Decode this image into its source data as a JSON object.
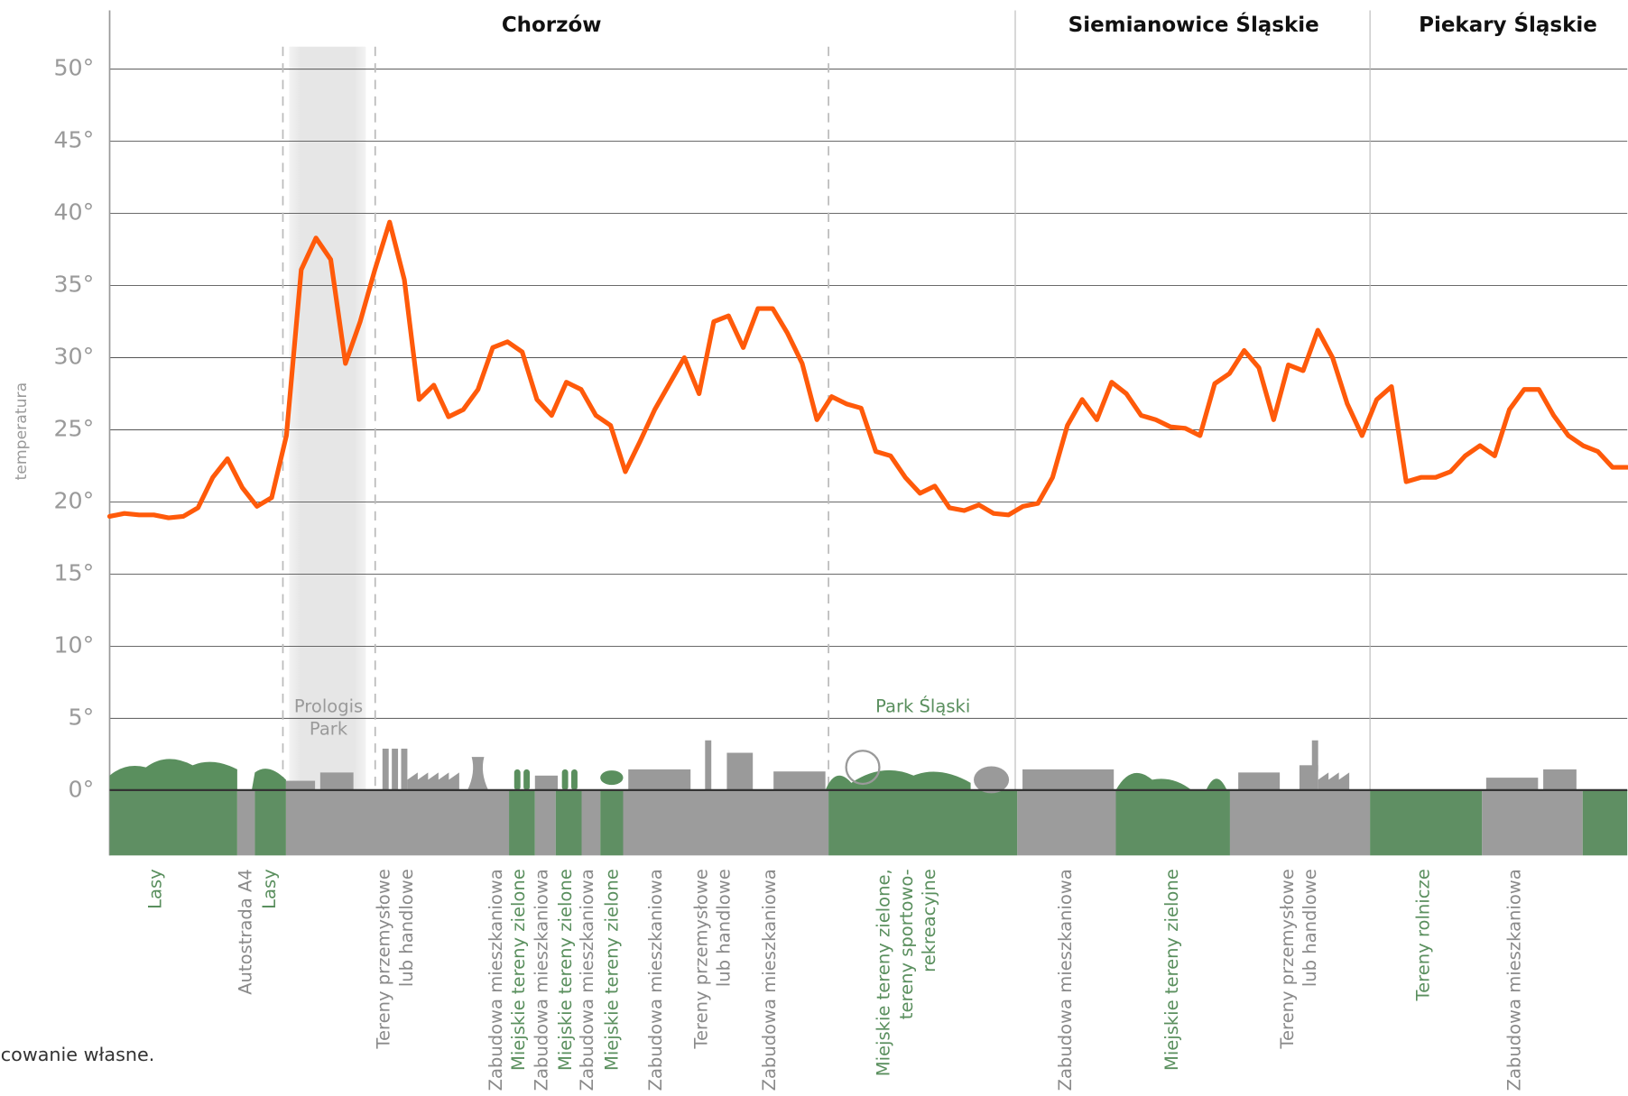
{
  "chart_data": {
    "type": "line",
    "y_label": "temperatura",
    "ylim": [
      -4.5,
      54
    ],
    "yticks": [
      {
        "value": 0,
        "label": "0°"
      },
      {
        "value": 5,
        "label": "5°"
      },
      {
        "value": 10,
        "label": "10°"
      },
      {
        "value": 15,
        "label": "15°"
      },
      {
        "value": 20,
        "label": "20°"
      },
      {
        "value": 25,
        "label": "25°"
      },
      {
        "value": 30,
        "label": "30°"
      },
      {
        "value": 35,
        "label": "35°"
      },
      {
        "value": 40,
        "label": "40°"
      },
      {
        "value": 45,
        "label": "45°"
      },
      {
        "value": 50,
        "label": "50°"
      }
    ],
    "grid": true,
    "series": [
      {
        "color": "#ff5a0a",
        "values": [
          19.0,
          19.2,
          19.1,
          19.1,
          18.9,
          19.0,
          19.6,
          21.7,
          23.0,
          21.0,
          19.7,
          20.3,
          24.6,
          36.1,
          38.3,
          36.8,
          29.6,
          32.5,
          36.1,
          39.4,
          35.4,
          27.1,
          28.1,
          25.9,
          26.4,
          27.8,
          30.7,
          31.1,
          30.4,
          27.1,
          26.0,
          28.3,
          27.8,
          26.0,
          25.3,
          22.1,
          24.2,
          26.4,
          28.2,
          30.0,
          27.5,
          32.5,
          32.9,
          30.7,
          33.4,
          33.4,
          31.7,
          29.6,
          25.7,
          27.3,
          26.8,
          26.5,
          23.5,
          23.2,
          21.7,
          20.6,
          21.1,
          19.6,
          19.4,
          19.8,
          19.2,
          19.1,
          19.7,
          19.9,
          21.7,
          25.3,
          27.1,
          25.7,
          28.3,
          27.5,
          26.0,
          25.7,
          25.2,
          25.1,
          24.6,
          28.2,
          28.9,
          30.5,
          29.3,
          25.7,
          29.5,
          29.1,
          31.9,
          30.0,
          26.8,
          24.6,
          27.1,
          28.0,
          21.4,
          21.7,
          21.7,
          22.1,
          23.2,
          23.9,
          23.2,
          26.4,
          27.8,
          27.8,
          26.0,
          24.6,
          23.9,
          23.5,
          22.4,
          22.4
        ]
      }
    ],
    "regions": [
      "Chorzów",
      "Siemianowice Śląskie",
      "Piekary Śląskie"
    ],
    "annotations": [
      [
        "Prologis",
        "Park"
      ],
      [
        "Park Śląski"
      ]
    ],
    "land_use": [
      {
        "lines": [
          "Lasy"
        ],
        "color": "#5a8f5e"
      },
      {
        "lines": [
          "Autostrada A4"
        ],
        "color": "#8a8a8a"
      },
      {
        "lines": [
          "Lasy"
        ],
        "color": "#5a8f5e"
      },
      {
        "lines": [
          "Tereny przemysłowe",
          "lub handlowe"
        ],
        "color": "#8a8a8a"
      },
      {
        "lines": [
          "Zabudowa mieszkaniowa"
        ],
        "color": "#8a8a8a"
      },
      {
        "lines": [
          "Miejskie tereny zielone"
        ],
        "color": "#5a8f5e"
      },
      {
        "lines": [
          "Zabudowa mieszkaniowa"
        ],
        "color": "#8a8a8a"
      },
      {
        "lines": [
          "Miejskie tereny zielone"
        ],
        "color": "#5a8f5e"
      },
      {
        "lines": [
          "Zabudowa mieszkaniowa"
        ],
        "color": "#8a8a8a"
      },
      {
        "lines": [
          "Miejskie tereny zielone"
        ],
        "color": "#5a8f5e"
      },
      {
        "lines": [
          "Zabudowa mieszkaniowa"
        ],
        "color": "#8a8a8a"
      },
      {
        "lines": [
          "Tereny przemysłowe",
          "lub handlowe"
        ],
        "color": "#8a8a8a"
      },
      {
        "lines": [
          "Zabudowa mieszkaniowa"
        ],
        "color": "#8a8a8a"
      },
      {
        "lines": [
          "Miejskie tereny zielone,",
          "tereny sportowo-",
          "rekreacyjne"
        ],
        "color": "#5a8f5e"
      },
      {
        "lines": [
          "Zabudowa mieszkaniowa"
        ],
        "color": "#8a8a8a"
      },
      {
        "lines": [
          "Miejskie tereny zielone"
        ],
        "color": "#5a8f5e"
      },
      {
        "lines": [
          "Tereny przemysłowe",
          "lub handlowe"
        ],
        "color": "#8a8a8a"
      },
      {
        "lines": [
          "Tereny rolnicze"
        ],
        "color": "#5a8f5e"
      },
      {
        "lines": [
          "Zabudowa mieszkaniowa"
        ],
        "color": "#8a8a8a"
      }
    ],
    "source": "cowanie własne."
  }
}
